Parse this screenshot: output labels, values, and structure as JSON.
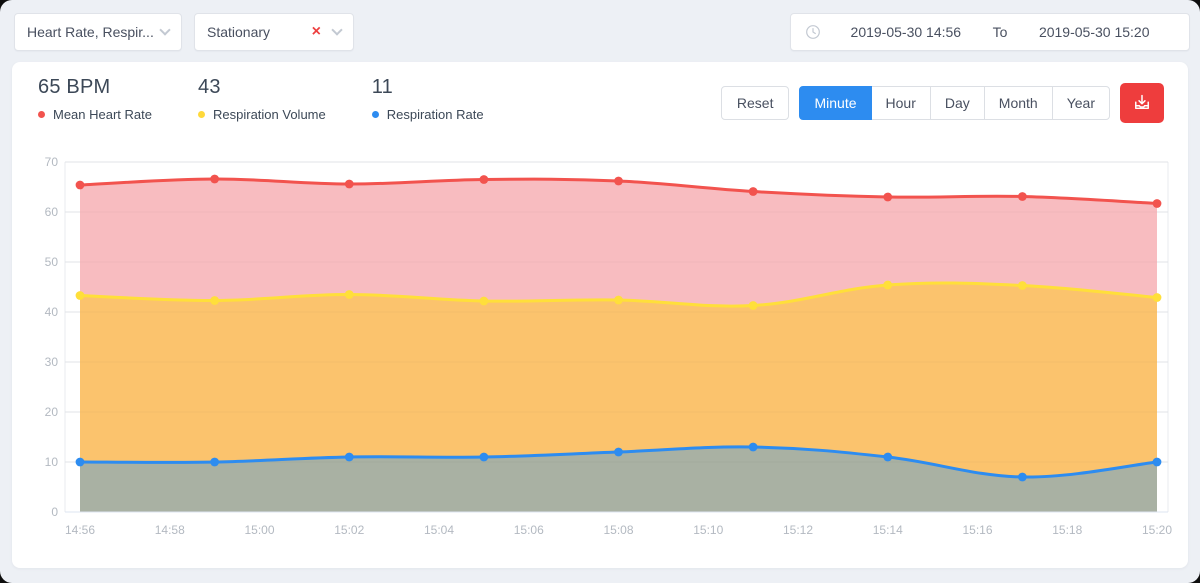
{
  "colors": {
    "accent": "#2d8cf0",
    "danger": "#ee3d3d"
  },
  "toolbar": {
    "metric_select": {
      "value": "Heart Rate, Respir..."
    },
    "activity_select": {
      "value": "Stationary"
    },
    "date_range": {
      "start": "2019-05-30 14:56",
      "separator": "To",
      "end": "2019-05-30 15:20"
    }
  },
  "stats": [
    {
      "value": "65 BPM",
      "label": "Mean Heart Rate",
      "color": "#f2534e"
    },
    {
      "value": "43",
      "label": "Respiration Volume",
      "color": "#ffd93b"
    },
    {
      "value": "11",
      "label": "Respiration Rate",
      "color": "#2d8cf0"
    }
  ],
  "controls": {
    "reset_label": "Reset",
    "granularity": [
      {
        "label": "Minute",
        "active": true
      },
      {
        "label": "Hour",
        "active": false
      },
      {
        "label": "Day",
        "active": false
      },
      {
        "label": "Month",
        "active": false
      },
      {
        "label": "Year",
        "active": false
      }
    ]
  },
  "chart_data": {
    "type": "area",
    "x": [
      "14:56",
      "14:59",
      "15:02",
      "15:05",
      "15:08",
      "15:11",
      "15:14",
      "15:17",
      "15:20"
    ],
    "x_tick_labels": [
      "14:56",
      "14:58",
      "15:00",
      "15:02",
      "15:04",
      "15:06",
      "15:08",
      "15:10",
      "15:12",
      "15:14",
      "15:16",
      "15:18",
      "15:20"
    ],
    "y_ticks": [
      0,
      10,
      20,
      30,
      40,
      50,
      60,
      70
    ],
    "ylim": [
      0,
      70
    ],
    "grid": true,
    "legend_position": "top-left",
    "series": [
      {
        "name": "Mean Heart Rate",
        "line_color": "#f2534e",
        "fill_color": "#f8bcc0",
        "values": [
          65.4,
          66.6,
          65.6,
          66.5,
          66.2,
          64.1,
          63.0,
          63.1,
          61.7
        ]
      },
      {
        "name": "Respiration Volume",
        "line_color": "#ffdf3a",
        "fill_color": "#fbc36d",
        "values": [
          43.3,
          42.3,
          43.5,
          42.2,
          42.4,
          41.3,
          45.4,
          45.3,
          42.9
        ]
      },
      {
        "name": "Respiration Rate",
        "line_color": "#2d8cf0",
        "fill_color": "#a9b1a3",
        "values": [
          10,
          10,
          11,
          11,
          12,
          13,
          11,
          7,
          10
        ]
      }
    ]
  }
}
